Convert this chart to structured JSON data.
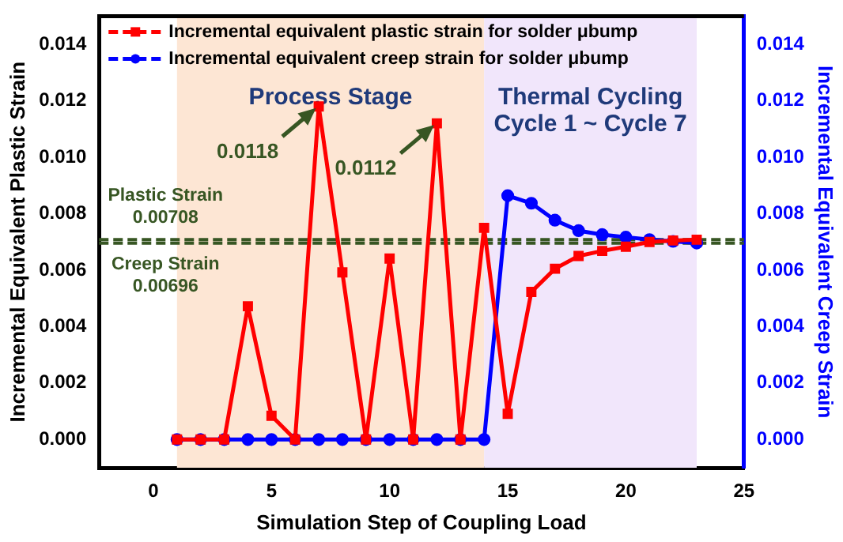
{
  "chart_data": {
    "type": "line",
    "xlabel": "Simulation Step of Coupling Load",
    "ylabel": "Incremental Equivalent Plastic Strain",
    "y2label": "Incremental Equivalent Creep Strain",
    "x": [
      1,
      2,
      3,
      4,
      5,
      6,
      7,
      8,
      9,
      10,
      11,
      12,
      13,
      14,
      15,
      16,
      17,
      18,
      19,
      20,
      21,
      22,
      23
    ],
    "series": [
      {
        "name": "Incremental equivalent plastic strain for solder μbump",
        "color": "#ff0000",
        "marker": "square",
        "line_style": "solid",
        "values": [
          0,
          0,
          0,
          0.00472,
          0.00084,
          0,
          0.0118,
          0.00592,
          0,
          0.00641,
          0,
          0.0112,
          0,
          0.0075,
          0.00091,
          0.00523,
          0.00605,
          0.0065,
          0.00668,
          0.00683,
          0.007,
          0.00705,
          0.00708
        ]
      },
      {
        "name": "Incremental equivalent creep strain for solder μbump",
        "color": "#0000ff",
        "marker": "circle",
        "line_style": "solid",
        "axis": "y2",
        "values": [
          0,
          0,
          0,
          0,
          0,
          0,
          0,
          0,
          0,
          0,
          0,
          0,
          0,
          0,
          0.00864,
          0.00837,
          0.00777,
          0.0074,
          0.00726,
          0.00717,
          0.00708,
          0.00702,
          0.00696
        ]
      }
    ],
    "xlim": [
      -2.3,
      25
    ],
    "xticks": [
      0,
      5,
      10,
      15,
      20,
      25
    ],
    "ylim": [
      -0.001,
      0.015
    ],
    "yticks": [
      {
        "value": 0,
        "label": "0.000"
      },
      0.002,
      0.004,
      0.006,
      0.008,
      {
        "value": 0.01,
        "label": "0.010"
      },
      0.012,
      0.014
    ],
    "y2lim": [
      -0.001,
      0.015
    ],
    "y2ticks": [
      {
        "value": 0,
        "label": "0.000"
      },
      0.002,
      0.004,
      0.006,
      0.008,
      {
        "value": 0.01,
        "label": "0.010"
      },
      0.012,
      0.014
    ],
    "ref_lines": [
      {
        "axis": "y",
        "value": 0.00708,
        "label": "Plastic Strain\n0.00708",
        "color": "#375623",
        "line_style": "dashed"
      },
      {
        "axis": "y",
        "value": 0.00696,
        "label": "Creep Strain\n0.00696",
        "color": "#375623",
        "line_style": "dashed"
      }
    ],
    "bands": [
      {
        "axis": "x",
        "from": 1,
        "to": 14,
        "label": "Process Stage",
        "color": "#fde6d4"
      },
      {
        "axis": "x",
        "from": 14,
        "to": 23,
        "label": "Thermal Cycling\nCycle 1 ~ Cycle 7",
        "color": "#f1e6fb"
      }
    ],
    "annotations": [
      {
        "text": "0.0118",
        "x": 7,
        "y": 0.0118
      },
      {
        "text": "0.0112",
        "x": 12,
        "y": 0.0112
      }
    ],
    "legend": "top left",
    "grid": false
  }
}
